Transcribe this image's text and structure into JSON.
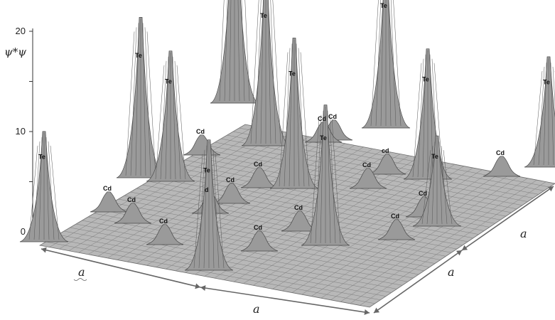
{
  "chart_data": {
    "type": "surface",
    "ylabel": "ψ*ψ",
    "zlim": [
      0,
      20
    ],
    "z_ticks": [
      "20",
      "10",
      "0"
    ],
    "x_dimension_labels": [
      "a",
      "a"
    ],
    "y_dimension_labels": [
      "a",
      "a"
    ],
    "grid": false,
    "legend": "none",
    "peaks": [
      {
        "atom": "Te",
        "height": 11
      },
      {
        "atom": "Te",
        "height": 16
      },
      {
        "atom": "Te",
        "height": 13
      },
      {
        "atom": "Te",
        "height": 21
      },
      {
        "atom": "Te",
        "height": 17
      },
      {
        "atom": "Te",
        "height": 13
      },
      {
        "atom": "Te",
        "height": 16
      },
      {
        "atom": "Te",
        "height": 15
      },
      {
        "atom": "Te",
        "height": 14
      },
      {
        "atom": "Te",
        "height": 13
      },
      {
        "atom": "Te",
        "height": 9
      },
      {
        "atom": "Te",
        "height": 11
      },
      {
        "atom": "Cd",
        "height": 2
      },
      {
        "atom": "Cd",
        "height": 2
      },
      {
        "atom": "Cd",
        "height": 2
      },
      {
        "atom": "Cd",
        "height": 2
      },
      {
        "atom": "Cd",
        "height": 2
      },
      {
        "atom": "Cd",
        "height": 2
      },
      {
        "atom": "Cd",
        "height": 2
      },
      {
        "atom": "Cd",
        "height": 2
      },
      {
        "atom": "Cd",
        "height": 2
      },
      {
        "atom": "cd",
        "height": 2
      },
      {
        "atom": "Cd",
        "height": 2
      },
      {
        "atom": "Cd",
        "height": 2
      },
      {
        "atom": "Cd",
        "height": 2
      },
      {
        "atom": "Cd",
        "height": 2
      },
      {
        "atom": "d",
        "height": 2
      },
      {
        "atom": "Cd",
        "height": 2
      }
    ],
    "surface_color": "#9a9a9a",
    "surface_line_color": "#4a4a4a"
  }
}
